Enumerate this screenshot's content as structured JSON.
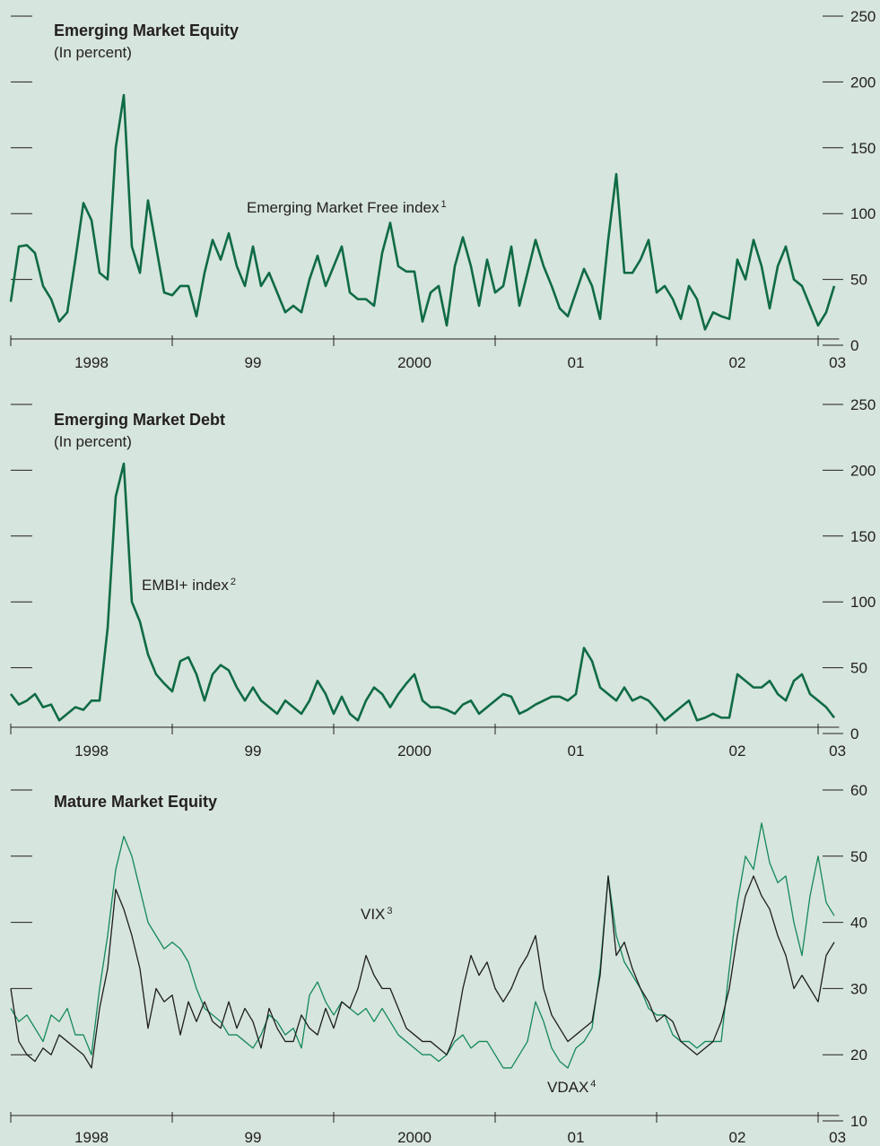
{
  "chart_data": [
    {
      "type": "line",
      "title": "Emerging Market Equity",
      "subtitle": "(In percent)",
      "xlim": [
        1998,
        2003.13
      ],
      "xticks": [
        1998,
        1999,
        2000,
        2001,
        2002,
        2003
      ],
      "xlabels": [
        {
          "value": 1998.5,
          "label": "1998"
        },
        {
          "value": 1999.5,
          "label": "99"
        },
        {
          "value": 2000.5,
          "label": "2000"
        },
        {
          "value": 2001.5,
          "label": "01"
        },
        {
          "value": 2002.5,
          "label": "02"
        },
        {
          "value": 2003.12,
          "label": "03"
        }
      ],
      "ylim": [
        0,
        250
      ],
      "yticks": [
        0,
        50,
        100,
        150,
        200,
        250
      ],
      "x": [
        1998,
        1998.05,
        1998.1,
        1998.15,
        1998.2,
        1998.25,
        1998.3,
        1998.35,
        1998.4,
        1998.45,
        1998.5,
        1998.55,
        1998.6,
        1998.65,
        1998.7,
        1998.75,
        1998.8,
        1998.85,
        1998.9,
        1998.95,
        1999,
        1999.05,
        1999.1,
        1999.15,
        1999.2,
        1999.25,
        1999.3,
        1999.35,
        1999.4,
        1999.45,
        1999.5,
        1999.55,
        1999.6,
        1999.65,
        1999.7,
        1999.75,
        1999.8,
        1999.85,
        1999.9,
        1999.95,
        2000,
        2000.05,
        2000.1,
        2000.15,
        2000.2,
        2000.25,
        2000.3,
        2000.35,
        2000.4,
        2000.45,
        2000.5,
        2000.55,
        2000.6,
        2000.65,
        2000.7,
        2000.75,
        2000.8,
        2000.85,
        2000.9,
        2000.95,
        2001,
        2001.05,
        2001.1,
        2001.15,
        2001.2,
        2001.25,
        2001.3,
        2001.35,
        2001.4,
        2001.45,
        2001.5,
        2001.55,
        2001.6,
        2001.65,
        2001.7,
        2001.75,
        2001.8,
        2001.85,
        2001.9,
        2001.95,
        2002,
        2002.05,
        2002.1,
        2002.15,
        2002.2,
        2002.25,
        2002.3,
        2002.35,
        2002.4,
        2002.45,
        2002.5,
        2002.55,
        2002.6,
        2002.65,
        2002.7,
        2002.75,
        2002.8,
        2002.85,
        2002.9,
        2002.95,
        2003,
        2003.05,
        2003.1
      ],
      "series": [
        {
          "name": "Emerging Market Free index",
          "note": "1",
          "color": "#0f6b45",
          "width": 2.6,
          "values": [
            33,
            75,
            76,
            70,
            45,
            35,
            18,
            25,
            65,
            108,
            95,
            55,
            50,
            150,
            190,
            75,
            55,
            110,
            75,
            40,
            38,
            45,
            45,
            22,
            55,
            80,
            65,
            85,
            60,
            45,
            75,
            45,
            55,
            40,
            25,
            30,
            25,
            50,
            68,
            45,
            60,
            75,
            40,
            35,
            35,
            30,
            70,
            93,
            60,
            56,
            56,
            18,
            40,
            45,
            15,
            60,
            82,
            60,
            30,
            65,
            40,
            45,
            75,
            30,
            55,
            80,
            60,
            45,
            28,
            22,
            40,
            58,
            45,
            20,
            80,
            130,
            55,
            55,
            65,
            80,
            40,
            45,
            35,
            20,
            45,
            35,
            12,
            25,
            22,
            20,
            65,
            50,
            80,
            60,
            28,
            60,
            75,
            50,
            45,
            30,
            15,
            25,
            45
          ]
        }
      ]
    },
    {
      "type": "line",
      "title": "Emerging Market Debt",
      "subtitle": "(In percent)",
      "xlim": [
        1998,
        2003.13
      ],
      "xticks": [
        1998,
        1999,
        2000,
        2001,
        2002,
        2003
      ],
      "xlabels": [
        {
          "value": 1998.5,
          "label": "1998"
        },
        {
          "value": 1999.5,
          "label": "99"
        },
        {
          "value": 2000.5,
          "label": "2000"
        },
        {
          "value": 2001.5,
          "label": "01"
        },
        {
          "value": 2002.5,
          "label": "02"
        },
        {
          "value": 2003.12,
          "label": "03"
        }
      ],
      "ylim": [
        0,
        250
      ],
      "yticks": [
        0,
        50,
        100,
        150,
        200,
        250
      ],
      "x": [
        1998,
        1998.05,
        1998.1,
        1998.15,
        1998.2,
        1998.25,
        1998.3,
        1998.35,
        1998.4,
        1998.45,
        1998.5,
        1998.55,
        1998.6,
        1998.65,
        1998.7,
        1998.75,
        1998.8,
        1998.85,
        1998.9,
        1998.95,
        1999,
        1999.05,
        1999.1,
        1999.15,
        1999.2,
        1999.25,
        1999.3,
        1999.35,
        1999.4,
        1999.45,
        1999.5,
        1999.55,
        1999.6,
        1999.65,
        1999.7,
        1999.75,
        1999.8,
        1999.85,
        1999.9,
        1999.95,
        2000,
        2000.05,
        2000.1,
        2000.15,
        2000.2,
        2000.25,
        2000.3,
        2000.35,
        2000.4,
        2000.45,
        2000.5,
        2000.55,
        2000.6,
        2000.65,
        2000.7,
        2000.75,
        2000.8,
        2000.85,
        2000.9,
        2000.95,
        2001,
        2001.05,
        2001.1,
        2001.15,
        2001.2,
        2001.25,
        2001.3,
        2001.35,
        2001.4,
        2001.45,
        2001.5,
        2001.55,
        2001.6,
        2001.65,
        2001.7,
        2001.75,
        2001.8,
        2001.85,
        2001.9,
        2001.95,
        2002,
        2002.05,
        2002.1,
        2002.15,
        2002.2,
        2002.25,
        2002.3,
        2002.35,
        2002.4,
        2002.45,
        2002.5,
        2002.55,
        2002.6,
        2002.65,
        2002.7,
        2002.75,
        2002.8,
        2002.85,
        2002.9,
        2002.95,
        2003,
        2003.05,
        2003.1
      ],
      "series": [
        {
          "name": "EMBI+ index",
          "note": "2",
          "color": "#0f6b45",
          "width": 2.6,
          "values": [
            30,
            22,
            25,
            30,
            20,
            22,
            10,
            15,
            20,
            18,
            25,
            25,
            80,
            180,
            205,
            100,
            85,
            60,
            45,
            38,
            32,
            55,
            58,
            45,
            25,
            45,
            52,
            48,
            35,
            25,
            35,
            25,
            20,
            15,
            25,
            20,
            15,
            25,
            40,
            30,
            15,
            28,
            15,
            10,
            25,
            35,
            30,
            20,
            30,
            38,
            45,
            25,
            20,
            20,
            18,
            15,
            22,
            25,
            15,
            20,
            25,
            30,
            28,
            15,
            18,
            22,
            25,
            28,
            28,
            25,
            30,
            65,
            55,
            35,
            30,
            25,
            35,
            25,
            28,
            25,
            18,
            10,
            15,
            20,
            25,
            10,
            12,
            15,
            12,
            12,
            45,
            40,
            35,
            35,
            40,
            30,
            25,
            40,
            45,
            30,
            25,
            20,
            12
          ]
        }
      ]
    },
    {
      "type": "line",
      "title": "Mature Market Equity",
      "xlim": [
        1998,
        2003.13
      ],
      "xticks": [
        1998,
        1999,
        2000,
        2001,
        2002,
        2003
      ],
      "xlabels": [
        {
          "value": 1998.5,
          "label": "1998"
        },
        {
          "value": 1999.5,
          "label": "99"
        },
        {
          "value": 2000.5,
          "label": "2000"
        },
        {
          "value": 2001.5,
          "label": "01"
        },
        {
          "value": 2002.5,
          "label": "02"
        },
        {
          "value": 2003.12,
          "label": "03"
        }
      ],
      "ylim": [
        10,
        60
      ],
      "yticks": [
        10,
        20,
        30,
        40,
        50,
        60
      ],
      "x": [
        1998,
        1998.05,
        1998.1,
        1998.15,
        1998.2,
        1998.25,
        1998.3,
        1998.35,
        1998.4,
        1998.45,
        1998.5,
        1998.55,
        1998.6,
        1998.65,
        1998.7,
        1998.75,
        1998.8,
        1998.85,
        1998.9,
        1998.95,
        1999,
        1999.05,
        1999.1,
        1999.15,
        1999.2,
        1999.25,
        1999.3,
        1999.35,
        1999.4,
        1999.45,
        1999.5,
        1999.55,
        1999.6,
        1999.65,
        1999.7,
        1999.75,
        1999.8,
        1999.85,
        1999.9,
        1999.95,
        2000,
        2000.05,
        2000.1,
        2000.15,
        2000.2,
        2000.25,
        2000.3,
        2000.35,
        2000.4,
        2000.45,
        2000.5,
        2000.55,
        2000.6,
        2000.65,
        2000.7,
        2000.75,
        2000.8,
        2000.85,
        2000.9,
        2000.95,
        2001,
        2001.05,
        2001.1,
        2001.15,
        2001.2,
        2001.25,
        2001.3,
        2001.35,
        2001.4,
        2001.45,
        2001.5,
        2001.55,
        2001.6,
        2001.65,
        2001.7,
        2001.75,
        2001.8,
        2001.85,
        2001.9,
        2001.95,
        2002,
        2002.05,
        2002.1,
        2002.15,
        2002.2,
        2002.25,
        2002.3,
        2002.35,
        2002.4,
        2002.45,
        2002.5,
        2002.55,
        2002.6,
        2002.65,
        2002.7,
        2002.75,
        2002.8,
        2002.85,
        2002.9,
        2002.95,
        2003,
        2003.05,
        2003.1
      ],
      "series": [
        {
          "name": "VDAX",
          "note": "4",
          "color": "#14895a",
          "width": 1.3,
          "values": [
            27,
            25,
            26,
            24,
            22,
            26,
            25,
            27,
            23,
            23,
            20,
            30,
            38,
            48,
            53,
            50,
            45,
            40,
            38,
            36,
            37,
            36,
            34,
            30,
            27,
            26,
            25,
            23,
            23,
            22,
            21,
            23,
            26,
            25,
            23,
            24,
            21,
            29,
            31,
            28,
            26,
            28,
            27,
            26,
            27,
            25,
            27,
            25,
            23,
            22,
            21,
            20,
            20,
            19,
            20,
            22,
            23,
            21,
            22,
            22,
            20,
            18,
            18,
            20,
            22,
            28,
            25,
            21,
            19,
            18,
            21,
            22,
            24,
            33,
            47,
            38,
            34,
            32,
            30,
            27,
            26,
            26,
            23,
            22,
            22,
            21,
            22,
            22,
            22,
            33,
            43,
            50,
            48,
            55,
            49,
            46,
            47,
            40,
            35,
            44,
            50,
            43,
            41
          ]
        },
        {
          "name": "VIX",
          "note": "3",
          "color": "#1e1e1e",
          "width": 1.3,
          "values": [
            30,
            22,
            20,
            19,
            21,
            20,
            23,
            22,
            21,
            20,
            18,
            27,
            33,
            45,
            42,
            38,
            33,
            24,
            30,
            28,
            29,
            23,
            28,
            25,
            28,
            25,
            24,
            28,
            24,
            27,
            25,
            21,
            27,
            24,
            22,
            22,
            26,
            24,
            23,
            27,
            24,
            28,
            27,
            30,
            35,
            32,
            30,
            30,
            27,
            24,
            23,
            22,
            22,
            21,
            20,
            23,
            30,
            35,
            32,
            34,
            30,
            28,
            30,
            33,
            35,
            38,
            30,
            26,
            24,
            22,
            23,
            24,
            25,
            32,
            47,
            35,
            37,
            33,
            30,
            28,
            25,
            26,
            25,
            22,
            21,
            20,
            21,
            22,
            25,
            30,
            38,
            44,
            47,
            44,
            42,
            38,
            35,
            30,
            32,
            30,
            28,
            35,
            37
          ]
        }
      ]
    }
  ]
}
